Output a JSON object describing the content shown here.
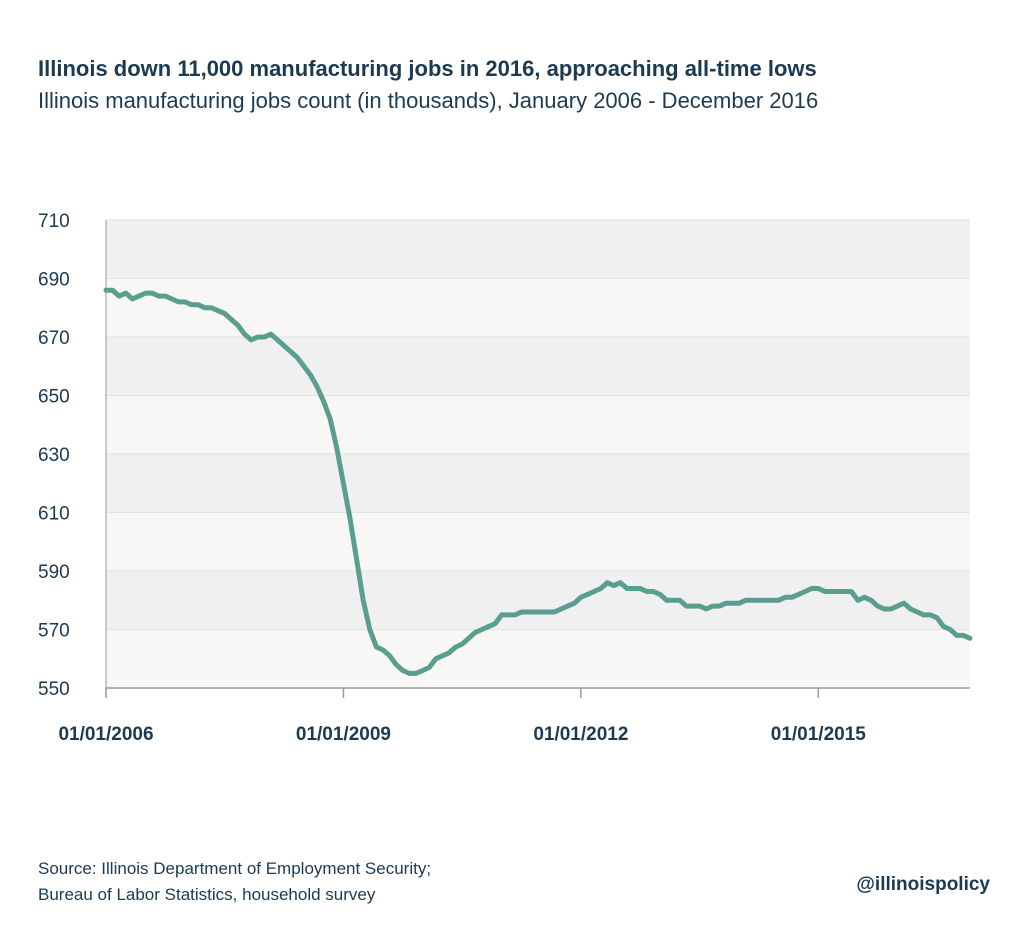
{
  "header": {
    "title": "Illinois down 11,000 manufacturing jobs in 2016, approaching all-time lows",
    "subtitle": "Illinois manufacturing jobs count (in thousands), January 2006 - December 2016"
  },
  "footer": {
    "source_line1": "Source: Illinois Department of Employment Security;",
    "source_line2": "Bureau of Labor Statistics, household survey",
    "handle": "@illinoispolicy"
  },
  "colors": {
    "line": "#5a9e90",
    "band_dark": "#f0f0f0",
    "band_light": "#f8f7f5",
    "text": "#1c3a52",
    "axis": "#999999"
  },
  "chart_data": {
    "type": "line",
    "title": "Illinois down 11,000 manufacturing jobs in 2016, approaching all-time lows",
    "subtitle": "Illinois manufacturing jobs count (in thousands), January 2006 - December 2016",
    "xlabel": "",
    "ylabel": "",
    "ylim": [
      550,
      710
    ],
    "yticks": [
      710,
      690,
      670,
      650,
      630,
      610,
      590,
      570,
      550
    ],
    "xticks": [
      "01/01/2006",
      "01/01/2009",
      "01/01/2012",
      "01/01/2015"
    ],
    "xrange": [
      "2006-01",
      "2016-12"
    ],
    "grid": "horizontal bands",
    "legend": "none",
    "series": [
      {
        "values": [
          [
            "2006-01",
            686
          ],
          [
            "2006-02",
            686
          ],
          [
            "2006-03",
            684
          ],
          [
            "2006-04",
            685
          ],
          [
            "2006-05",
            683
          ],
          [
            "2006-06",
            684
          ],
          [
            "2006-07",
            685
          ],
          [
            "2006-08",
            685
          ],
          [
            "2006-09",
            684
          ],
          [
            "2006-10",
            684
          ],
          [
            "2006-11",
            683
          ],
          [
            "2006-12",
            682
          ],
          [
            "2007-01",
            682
          ],
          [
            "2007-02",
            681
          ],
          [
            "2007-03",
            681
          ],
          [
            "2007-04",
            680
          ],
          [
            "2007-05",
            680
          ],
          [
            "2007-06",
            679
          ],
          [
            "2007-07",
            678
          ],
          [
            "2007-08",
            676
          ],
          [
            "2007-09",
            674
          ],
          [
            "2007-10",
            671
          ],
          [
            "2007-11",
            669
          ],
          [
            "2007-12",
            670
          ],
          [
            "2008-01",
            670
          ],
          [
            "2008-02",
            671
          ],
          [
            "2008-03",
            669
          ],
          [
            "2008-04",
            667
          ],
          [
            "2008-05",
            665
          ],
          [
            "2008-06",
            663
          ],
          [
            "2008-07",
            660
          ],
          [
            "2008-08",
            657
          ],
          [
            "2008-09",
            653
          ],
          [
            "2008-10",
            648
          ],
          [
            "2008-11",
            642
          ],
          [
            "2008-12",
            632
          ],
          [
            "2009-01",
            620
          ],
          [
            "2009-02",
            608
          ],
          [
            "2009-03",
            594
          ],
          [
            "2009-04",
            580
          ],
          [
            "2009-05",
            570
          ],
          [
            "2009-06",
            564
          ],
          [
            "2009-07",
            563
          ],
          [
            "2009-08",
            561
          ],
          [
            "2009-09",
            558
          ],
          [
            "2009-10",
            556
          ],
          [
            "2009-11",
            555
          ],
          [
            "2009-12",
            555
          ],
          [
            "2010-01",
            556
          ],
          [
            "2010-02",
            557
          ],
          [
            "2010-03",
            560
          ],
          [
            "2010-04",
            561
          ],
          [
            "2010-05",
            562
          ],
          [
            "2010-06",
            564
          ],
          [
            "2010-07",
            565
          ],
          [
            "2010-08",
            567
          ],
          [
            "2010-09",
            569
          ],
          [
            "2010-10",
            570
          ],
          [
            "2010-11",
            571
          ],
          [
            "2010-12",
            572
          ],
          [
            "2011-01",
            575
          ],
          [
            "2011-02",
            575
          ],
          [
            "2011-03",
            575
          ],
          [
            "2011-04",
            576
          ],
          [
            "2011-05",
            576
          ],
          [
            "2011-06",
            576
          ],
          [
            "2011-07",
            576
          ],
          [
            "2011-08",
            576
          ],
          [
            "2011-09",
            576
          ],
          [
            "2011-10",
            577
          ],
          [
            "2011-11",
            578
          ],
          [
            "2011-12",
            579
          ],
          [
            "2012-01",
            581
          ],
          [
            "2012-02",
            582
          ],
          [
            "2012-03",
            583
          ],
          [
            "2012-04",
            584
          ],
          [
            "2012-05",
            586
          ],
          [
            "2012-06",
            585
          ],
          [
            "2012-07",
            586
          ],
          [
            "2012-08",
            584
          ],
          [
            "2012-09",
            584
          ],
          [
            "2012-10",
            584
          ],
          [
            "2012-11",
            583
          ],
          [
            "2012-12",
            583
          ],
          [
            "2013-01",
            582
          ],
          [
            "2013-02",
            580
          ],
          [
            "2013-03",
            580
          ],
          [
            "2013-04",
            580
          ],
          [
            "2013-05",
            578
          ],
          [
            "2013-06",
            578
          ],
          [
            "2013-07",
            578
          ],
          [
            "2013-08",
            577
          ],
          [
            "2013-09",
            578
          ],
          [
            "2013-10",
            578
          ],
          [
            "2013-11",
            579
          ],
          [
            "2013-12",
            579
          ],
          [
            "2014-01",
            579
          ],
          [
            "2014-02",
            580
          ],
          [
            "2014-03",
            580
          ],
          [
            "2014-04",
            580
          ],
          [
            "2014-05",
            580
          ],
          [
            "2014-06",
            580
          ],
          [
            "2014-07",
            580
          ],
          [
            "2014-08",
            581
          ],
          [
            "2014-09",
            581
          ],
          [
            "2014-10",
            582
          ],
          [
            "2014-11",
            583
          ],
          [
            "2014-12",
            584
          ],
          [
            "2015-01",
            584
          ],
          [
            "2015-02",
            583
          ],
          [
            "2015-03",
            583
          ],
          [
            "2015-04",
            583
          ],
          [
            "2015-05",
            583
          ],
          [
            "2015-06",
            583
          ],
          [
            "2015-07",
            580
          ],
          [
            "2015-08",
            581
          ],
          [
            "2015-09",
            580
          ],
          [
            "2015-10",
            578
          ],
          [
            "2015-11",
            577
          ],
          [
            "2015-12",
            577
          ],
          [
            "2016-01",
            578
          ],
          [
            "2016-02",
            579
          ],
          [
            "2016-03",
            577
          ],
          [
            "2016-04",
            576
          ],
          [
            "2016-05",
            575
          ],
          [
            "2016-06",
            575
          ],
          [
            "2016-07",
            574
          ],
          [
            "2016-08",
            571
          ],
          [
            "2016-09",
            570
          ],
          [
            "2016-10",
            568
          ],
          [
            "2016-11",
            568
          ],
          [
            "2016-12",
            567
          ]
        ]
      }
    ]
  }
}
